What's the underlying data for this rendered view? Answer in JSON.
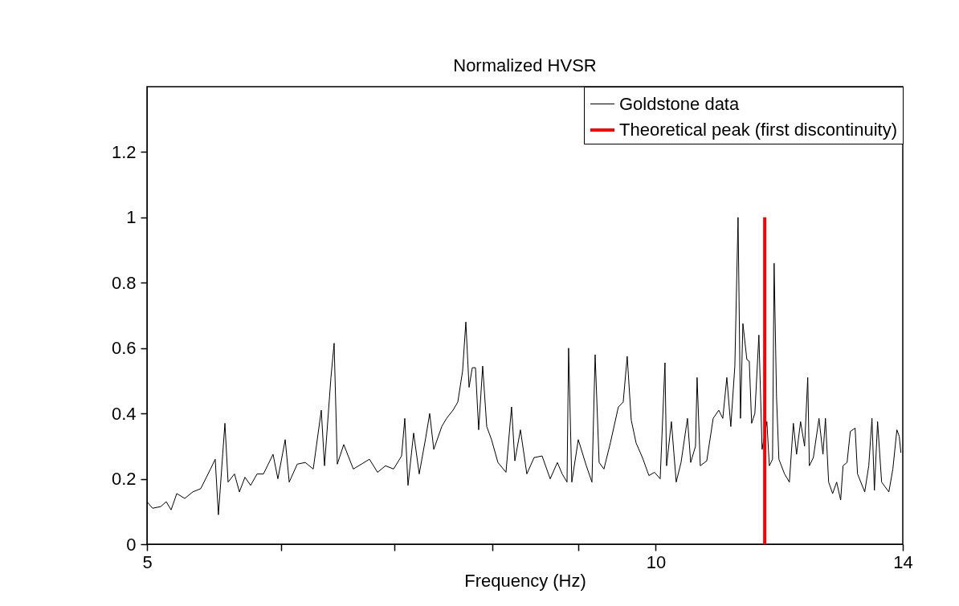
{
  "chart_data": {
    "type": "line",
    "title": "Normalized HVSR",
    "xlabel": "Frequency (Hz)",
    "log": "x",
    "xlim": [
      5,
      14
    ],
    "ylim": [
      0,
      1.4
    ],
    "xticks": [
      5,
      {
        "value": 6,
        "label": null
      },
      {
        "value": 7,
        "label": null
      },
      {
        "value": 8,
        "label": null
      },
      {
        "value": 9,
        "label": null
      },
      10,
      14
    ],
    "yticks": [
      0,
      0.2,
      0.4,
      0.6,
      0.8,
      1,
      1.2
    ],
    "grid": false,
    "legend": "top right",
    "marker": "none",
    "line_style": "solid",
    "series": [
      {
        "name": "Goldstone data",
        "color": "#000000",
        "x": [
          5.0,
          5.038,
          5.094,
          5.133,
          5.167,
          5.207,
          5.264,
          5.322,
          5.38,
          5.452,
          5.487,
          5.511,
          5.56,
          5.584,
          5.633,
          5.671,
          5.714,
          5.758,
          5.809,
          5.86,
          5.937,
          5.976,
          6.036,
          6.069,
          6.136,
          6.203,
          6.271,
          6.34,
          6.368,
          6.424,
          6.452,
          6.48,
          6.537,
          6.623,
          6.696,
          6.77,
          6.845,
          6.92,
          6.996,
          7.073,
          7.104,
          7.135,
          7.19,
          7.245,
          7.309,
          7.349,
          7.39,
          7.471,
          7.52,
          7.586,
          7.636,
          7.686,
          7.72,
          7.754,
          7.788,
          7.822,
          7.856,
          7.899,
          7.943,
          7.995,
          8.065,
          8.154,
          8.216,
          8.253,
          8.316,
          8.389,
          8.472,
          8.565,
          8.66,
          8.745,
          8.803,
          8.861,
          8.88,
          8.919,
          8.998,
          9.097,
          9.167,
          9.207,
          9.257,
          9.318,
          9.4,
          9.503,
          9.566,
          9.618,
          9.671,
          9.735,
          9.82,
          9.907,
          9.983,
          10.06,
          10.126,
          10.148,
          10.215,
          10.282,
          10.35,
          10.441,
          10.487,
          10.556,
          10.579,
          10.625,
          10.719,
          10.813,
          10.896,
          10.956,
          11.016,
          11.076,
          11.137,
          11.186,
          11.223,
          11.26,
          11.321,
          11.358,
          11.395,
          11.445,
          11.508,
          11.558,
          11.634,
          11.673,
          11.724,
          11.749,
          11.788,
          11.826,
          11.917,
          11.996,
          12.061,
          12.114,
          12.18,
          12.247,
          12.3,
          12.327,
          12.394,
          12.49,
          12.558,
          12.6,
          12.655,
          12.724,
          12.794,
          12.864,
          12.906,
          12.977,
          13.034,
          13.12,
          13.163,
          13.293,
          13.366,
          13.425,
          13.469,
          13.528,
          13.602,
          13.737,
          13.812,
          13.888,
          13.933,
          13.964
        ],
        "values": [
          0.13,
          0.11,
          0.115,
          0.13,
          0.105,
          0.155,
          0.14,
          0.16,
          0.17,
          0.23,
          0.26,
          0.09,
          0.37,
          0.19,
          0.215,
          0.16,
          0.205,
          0.18,
          0.215,
          0.215,
          0.275,
          0.2,
          0.32,
          0.19,
          0.245,
          0.25,
          0.23,
          0.41,
          0.24,
          0.51,
          0.615,
          0.245,
          0.305,
          0.23,
          0.245,
          0.26,
          0.22,
          0.24,
          0.23,
          0.27,
          0.385,
          0.18,
          0.34,
          0.215,
          0.325,
          0.4,
          0.29,
          0.36,
          0.385,
          0.41,
          0.435,
          0.53,
          0.68,
          0.48,
          0.54,
          0.54,
          0.35,
          0.545,
          0.36,
          0.32,
          0.25,
          0.22,
          0.42,
          0.255,
          0.35,
          0.215,
          0.265,
          0.27,
          0.2,
          0.25,
          0.215,
          0.19,
          0.6,
          0.19,
          0.32,
          0.24,
          0.19,
          0.58,
          0.25,
          0.23,
          0.31,
          0.42,
          0.435,
          0.575,
          0.38,
          0.31,
          0.265,
          0.21,
          0.22,
          0.2,
          0.555,
          0.24,
          0.375,
          0.19,
          0.25,
          0.385,
          0.25,
          0.3,
          0.51,
          0.24,
          0.255,
          0.385,
          0.41,
          0.385,
          0.51,
          0.36,
          0.545,
          1.0,
          0.385,
          0.675,
          0.565,
          0.56,
          0.37,
          0.4,
          0.64,
          0.29,
          0.375,
          0.24,
          0.26,
          0.86,
          0.45,
          0.26,
          0.215,
          0.19,
          0.37,
          0.275,
          0.375,
          0.3,
          0.51,
          0.24,
          0.265,
          0.385,
          0.275,
          0.385,
          0.19,
          0.155,
          0.19,
          0.135,
          0.24,
          0.25,
          0.345,
          0.355,
          0.215,
          0.16,
          0.24,
          0.385,
          0.165,
          0.375,
          0.19,
          0.16,
          0.23,
          0.35,
          0.33,
          0.28
        ]
      },
      {
        "name": "Theoretical peak (first discontinuity)",
        "color": "#ff0000",
        "x": [
          11.6,
          11.6
        ],
        "values": [
          0,
          1
        ]
      }
    ]
  }
}
